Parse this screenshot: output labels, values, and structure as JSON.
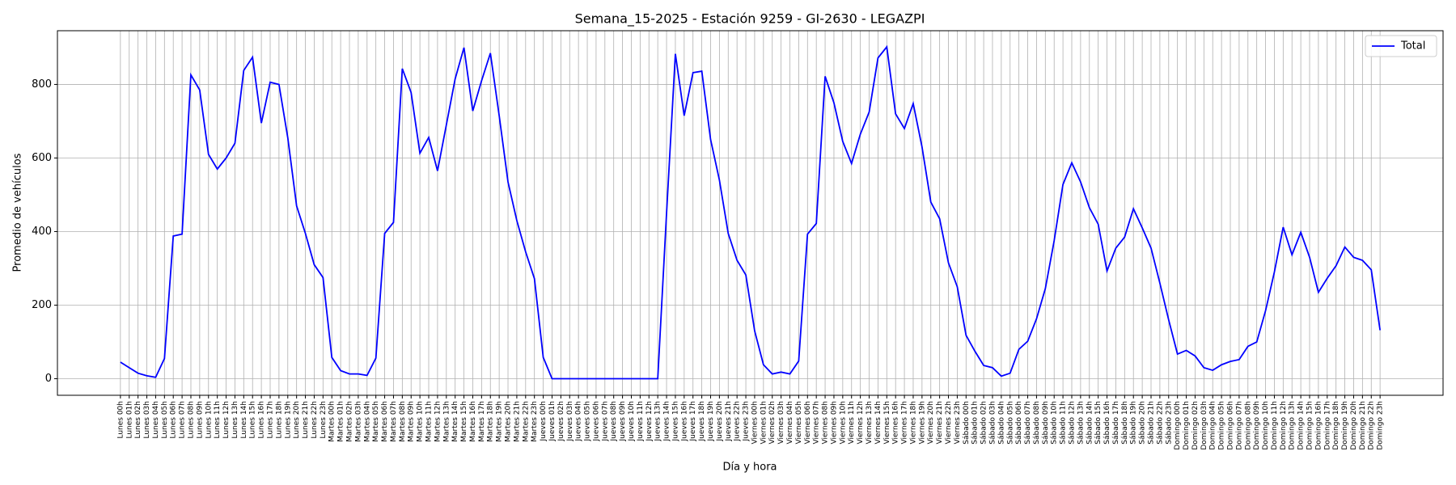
{
  "chart_data": {
    "type": "line",
    "title": "Semana_15-2025 - Estación 9259 - GI-2630  - LEGAZPI",
    "x_label": "Día y hora",
    "y_label": "Promedio de vehículos",
    "legend": "upper right",
    "grid": true,
    "ylim": [
      -45,
      946
    ],
    "yticks": [
      0,
      200,
      400,
      600,
      800
    ],
    "categories": [
      "Lunes 00h",
      "Lunes 01h",
      "Lunes 02h",
      "Lunes 03h",
      "Lunes 04h",
      "Lunes 05h",
      "Lunes 06h",
      "Lunes 07h",
      "Lunes 08h",
      "Lunes 09h",
      "Lunes 10h",
      "Lunes 11h",
      "Lunes 12h",
      "Lunes 13h",
      "Lunes 14h",
      "Lunes 15h",
      "Lunes 16h",
      "Lunes 17h",
      "Lunes 18h",
      "Lunes 19h",
      "Lunes 20h",
      "Lunes 21h",
      "Lunes 22h",
      "Lunes 23h",
      "Martes 00h",
      "Martes 01h",
      "Martes 02h",
      "Martes 03h",
      "Martes 04h",
      "Martes 05h",
      "Martes 06h",
      "Martes 07h",
      "Martes 08h",
      "Martes 09h",
      "Martes 10h",
      "Martes 11h",
      "Martes 12h",
      "Martes 13h",
      "Martes 14h",
      "Martes 15h",
      "Martes 16h",
      "Martes 17h",
      "Martes 18h",
      "Martes 19h",
      "Martes 20h",
      "Martes 21h",
      "Martes 22h",
      "Martes 23h",
      "Jueves 00h",
      "Jueves 01h",
      "Jueves 02h",
      "Jueves 03h",
      "Jueves 04h",
      "Jueves 05h",
      "Jueves 06h",
      "Jueves 07h",
      "Jueves 08h",
      "Jueves 09h",
      "Jueves 10h",
      "Jueves 11h",
      "Jueves 12h",
      "Jueves 13h",
      "Jueves 14h",
      "Jueves 15h",
      "Jueves 16h",
      "Jueves 17h",
      "Jueves 18h",
      "Jueves 19h",
      "Jueves 20h",
      "Jueves 21h",
      "Jueves 22h",
      "Jueves 23h",
      "Viernes 00h",
      "Viernes 01h",
      "Viernes 02h",
      "Viernes 03h",
      "Viernes 04h",
      "Viernes 05h",
      "Viernes 06h",
      "Viernes 07h",
      "Viernes 08h",
      "Viernes 09h",
      "Viernes 10h",
      "Viernes 11h",
      "Viernes 12h",
      "Viernes 13h",
      "Viernes 14h",
      "Viernes 15h",
      "Viernes 16h",
      "Viernes 17h",
      "Viernes 18h",
      "Viernes 19h",
      "Viernes 20h",
      "Viernes 21h",
      "Viernes 22h",
      "Viernes 23h",
      "Sábado 00h",
      "Sábado 01h",
      "Sábado 02h",
      "Sábado 03h",
      "Sábado 04h",
      "Sábado 05h",
      "Sábado 06h",
      "Sábado 07h",
      "Sábado 08h",
      "Sábado 09h",
      "Sábado 10h",
      "Sábado 11h",
      "Sábado 12h",
      "Sábado 13h",
      "Sábado 14h",
      "Sábado 15h",
      "Sábado 16h",
      "Sábado 17h",
      "Sábado 18h",
      "Sábado 19h",
      "Sábado 20h",
      "Sábado 21h",
      "Sábado 22h",
      "Sábado 23h",
      "Domingo 00h",
      "Domingo 01h",
      "Domingo 02h",
      "Domingo 03h",
      "Domingo 04h",
      "Domingo 05h",
      "Domingo 06h",
      "Domingo 07h",
      "Domingo 08h",
      "Domingo 09h",
      "Domingo 10h",
      "Domingo 11h",
      "Domingo 12h",
      "Domingo 13h",
      "Domingo 14h",
      "Domingo 15h",
      "Domingo 16h",
      "Domingo 17h",
      "Domingo 18h",
      "Domingo 19h",
      "Domingo 20h",
      "Domingo 21h",
      "Domingo 22h",
      "Domingo 23h"
    ],
    "series": [
      {
        "name": "Total",
        "color": "#0000ff",
        "values": [
          45,
          30,
          15,
          8,
          4,
          55,
          388,
          393,
          826,
          785,
          610,
          570,
          600,
          640,
          838,
          874,
          695,
          806,
          800,
          655,
          470,
          395,
          310,
          275,
          58,
          22,
          13,
          13,
          9,
          56,
          395,
          425,
          843,
          778,
          613,
          656,
          565,
          690,
          815,
          900,
          728,
          810,
          885,
          715,
          535,
          430,
          345,
          272,
          58,
          0,
          0,
          0,
          0,
          0,
          0,
          0,
          0,
          0,
          0,
          0,
          0,
          0,
          450,
          883,
          715,
          832,
          836,
          650,
          540,
          395,
          322,
          282,
          130,
          38,
          13,
          18,
          13,
          48,
          393,
          422,
          822,
          750,
          645,
          585,
          665,
          725,
          872,
          902,
          720,
          680,
          748,
          630,
          480,
          435,
          315,
          250,
          118,
          75,
          36,
          30,
          7,
          15,
          80,
          102,
          163,
          245,
          375,
          528,
          587,
          535,
          465,
          420,
          293,
          355,
          385,
          462,
          410,
          355,
          260,
          160,
          67,
          77,
          62,
          30,
          23,
          38,
          47,
          52,
          88,
          100,
          185,
          290,
          412,
          337,
          398,
          330,
          235,
          273,
          307,
          358,
          330,
          322,
          296,
          132
        ]
      }
    ]
  }
}
